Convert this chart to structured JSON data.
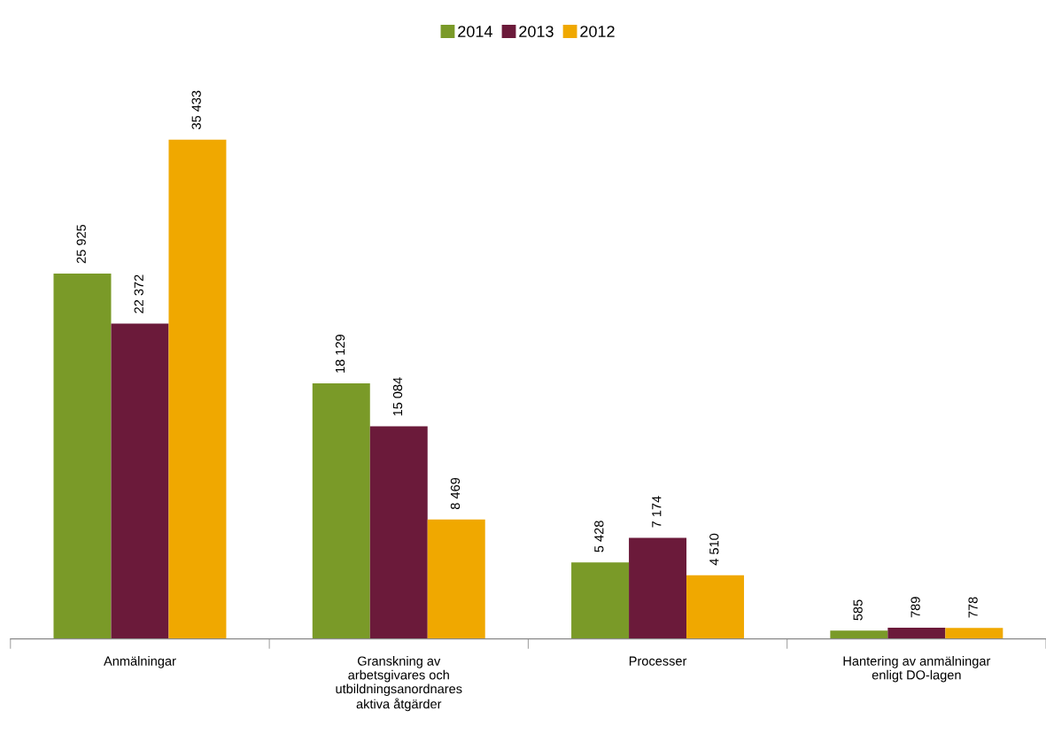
{
  "chart_data": {
    "type": "bar",
    "categories": [
      "Anmälningar",
      "Granskning av\narbetsgivares och\nutbildningsanordnares\naktiva åtgärder",
      "Processer",
      "Hantering av anmälningar\nenligt DO-lagen"
    ],
    "series": [
      {
        "name": "2014",
        "color": "#7a9a28",
        "values": [
          25925,
          18129,
          5428,
          585
        ],
        "value_labels": [
          "25 925",
          "18 129",
          "5 428",
          "585"
        ]
      },
      {
        "name": "2013",
        "color": "#6b1a3a",
        "values": [
          22372,
          15084,
          7174,
          789
        ],
        "value_labels": [
          "22 372",
          "15 084",
          "7 174",
          "789"
        ]
      },
      {
        "name": "2012",
        "color": "#f0a800",
        "values": [
          35433,
          8469,
          4510,
          778
        ],
        "value_labels": [
          "35 433",
          "8 469",
          "4 510",
          "778"
        ]
      }
    ],
    "legend": "top",
    "grid": false
  }
}
